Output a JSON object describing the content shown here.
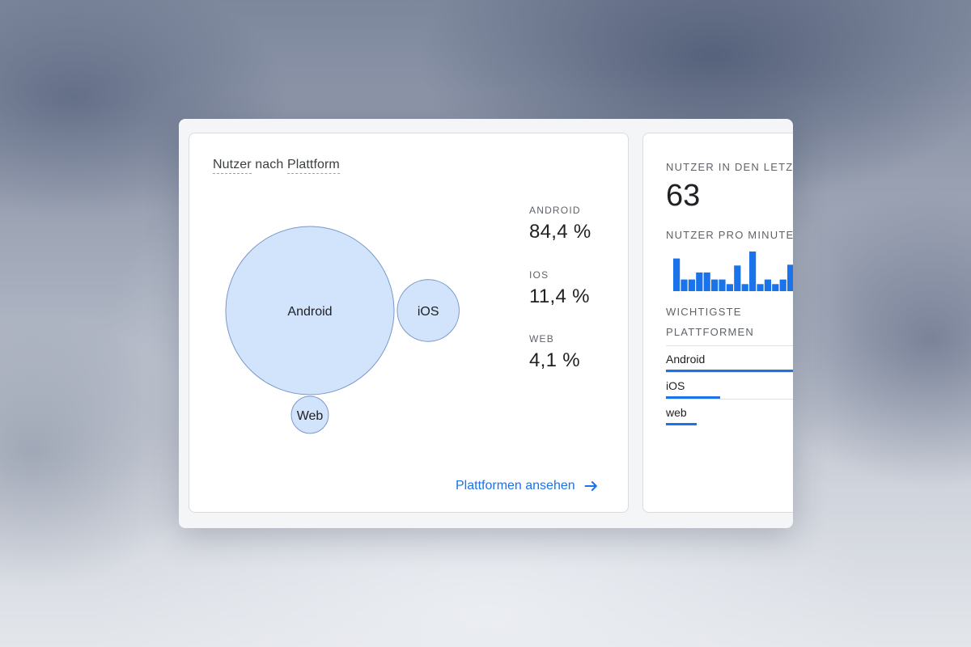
{
  "colors": {
    "accent": "#1a73e8",
    "bubble_fill": "#d2e3fc",
    "bubble_stroke": "#7a98c8",
    "bar": "#1a73e8"
  },
  "platform_card": {
    "title_part1": "Nutzer",
    "title_part2": "nach",
    "title_part3": "Plattform",
    "platforms": [
      {
        "name": "Android",
        "stat_label": "ANDROID",
        "share": 84.4,
        "share_text": "84,4 %"
      },
      {
        "name": "iOS",
        "stat_label": "IOS",
        "share": 11.4,
        "share_text": "11,4 %"
      },
      {
        "name": "Web",
        "stat_label": "WEB",
        "share": 4.1,
        "share_text": "4,1 %"
      }
    ],
    "link_text": "Plattformen ansehen",
    "link_icon": "arrow-right-icon"
  },
  "realtime_card": {
    "users_label": "NUTZER IN DEN LETZT",
    "users_value": "63",
    "per_minute_label": "NUTZER PRO MINUTE",
    "per_minute_values": [
      42,
      15,
      15,
      24,
      24,
      15,
      15,
      9,
      33,
      9,
      51,
      9,
      15,
      9,
      15,
      34
    ],
    "top_platforms_label_line1": "WICHTIGSTE",
    "top_platforms_label_line2": "PLATTFORMEN",
    "top_platforms": [
      {
        "name": "Android",
        "share": 84.4
      },
      {
        "name": "iOS",
        "share": 11.4
      },
      {
        "name": "web",
        "share": 4.1
      }
    ]
  }
}
